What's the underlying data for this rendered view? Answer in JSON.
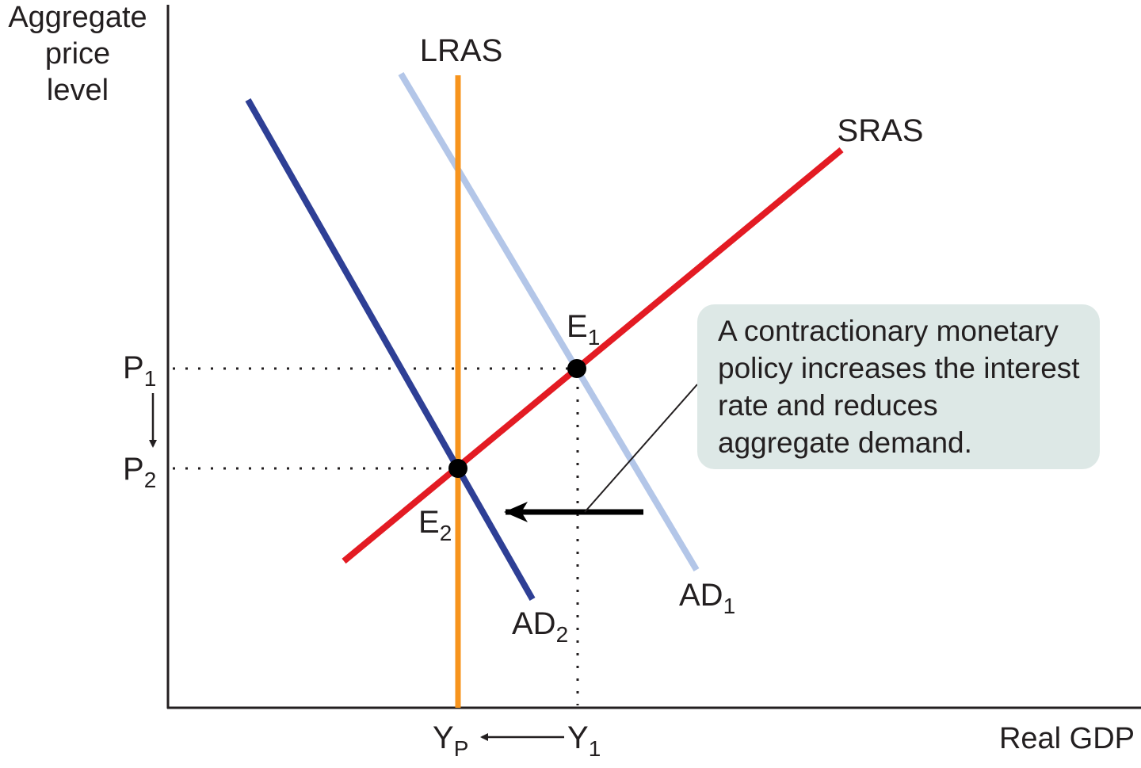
{
  "axes": {
    "y_label": [
      "Aggregate",
      "price",
      "level"
    ],
    "x_label": "Real GDP"
  },
  "curves": {
    "lras": "LRAS",
    "sras": "SRAS",
    "ad1": {
      "base": "AD",
      "sub": "1"
    },
    "ad2": {
      "base": "AD",
      "sub": "2"
    }
  },
  "points": {
    "e1": {
      "base": "E",
      "sub": "1"
    },
    "e2": {
      "base": "E",
      "sub": "2"
    }
  },
  "price_levels": {
    "p1": {
      "base": "P",
      "sub": "1"
    },
    "p2": {
      "base": "P",
      "sub": "2"
    }
  },
  "output_levels": {
    "yp": {
      "base": "Y",
      "sub": "P"
    },
    "y1": {
      "base": "Y",
      "sub": "1"
    }
  },
  "annotation": {
    "lines": [
      "A contractionary monetary",
      "policy increases the interest",
      "rate and reduces",
      "aggregate demand."
    ]
  },
  "colors": {
    "lras": "#f7941d",
    "sras": "#e31b23",
    "ad1": "#b3c6e8",
    "ad2": "#2e3f95",
    "axis": "#231f20",
    "note_bg": "#dde8e6"
  }
}
